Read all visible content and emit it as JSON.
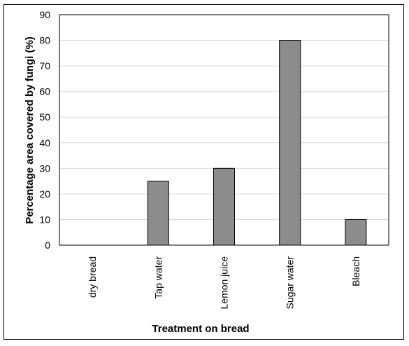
{
  "chart_data": {
    "type": "bar",
    "title": "",
    "xlabel": "Treatment on bread",
    "ylabel": "Percentage area covered by fungi (%)",
    "categories": [
      "dry bread",
      "Tap water",
      "Lemon juice",
      "Sugar water",
      "Bleach"
    ],
    "values": [
      0,
      25,
      30,
      80,
      10
    ],
    "ylim": [
      0,
      90
    ],
    "yticks": [
      0,
      10,
      20,
      30,
      40,
      50,
      60,
      70,
      80,
      90
    ],
    "grid": true,
    "legend": "none",
    "colors": {
      "bar": "#8c8c8c",
      "bar_stroke": "#000000",
      "grid": "#d9d9d9"
    }
  }
}
